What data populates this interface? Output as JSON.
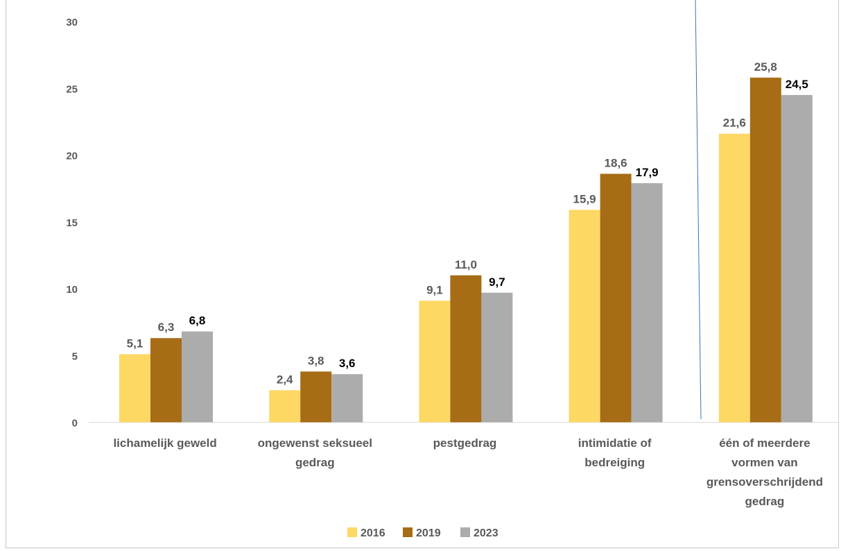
{
  "chart_data": {
    "type": "bar",
    "categories": [
      [
        "lichamelijk geweld"
      ],
      [
        "ongewenst seksueel",
        "gedrag"
      ],
      [
        "pestgedrag"
      ],
      [
        "intimidatie of",
        "bedreiging"
      ],
      [
        "één of meerdere",
        "vormen van",
        "grensoverschrijdend",
        "gedrag"
      ]
    ],
    "series": [
      {
        "name": "2016",
        "color": "#fdd865",
        "label_color": "#595959",
        "values": [
          5.1,
          2.4,
          9.1,
          15.9,
          21.6
        ],
        "labels": [
          "5,1",
          "2,4",
          "9,1",
          "15,9",
          "21,6"
        ]
      },
      {
        "name": "2019",
        "color": "#a66c16",
        "label_color": "#595959",
        "values": [
          6.3,
          3.8,
          11.0,
          18.6,
          25.8
        ],
        "labels": [
          "6,3",
          "3,8",
          "11,0",
          "18,6",
          "25,8"
        ]
      },
      {
        "name": "2023",
        "color": "#acacac",
        "label_color": "#000000",
        "values": [
          6.8,
          3.6,
          9.7,
          17.9,
          24.5
        ],
        "labels": [
          "6,8",
          "3,6",
          "9,7",
          "17,9",
          "24,5"
        ]
      }
    ],
    "ylim": [
      0,
      30
    ],
    "yticks": [
      0,
      5,
      10,
      15,
      20,
      25,
      30
    ],
    "grid": false,
    "legend_position": "bottom",
    "separator_after_category": 3,
    "separator_color": "#2e75b6"
  }
}
